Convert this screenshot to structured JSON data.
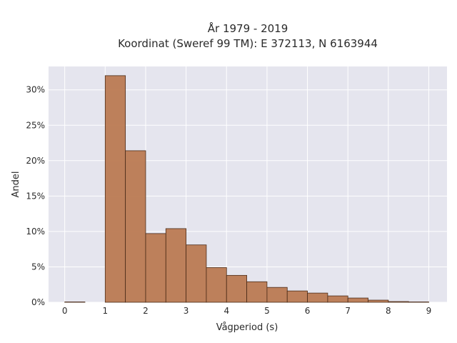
{
  "chart_data": {
    "type": "bar",
    "title": "År 1979 - 2019",
    "subtitle": "Koordinat (Sweref 99 TM): E 372113, N 6163944",
    "xlabel": "Vågperiod (s)",
    "ylabel": "Andel",
    "xlim": [
      -0.4,
      9.45
    ],
    "ylim": [
      0,
      0.333
    ],
    "x_ticks": [
      0,
      1,
      2,
      3,
      4,
      5,
      6,
      7,
      8,
      9
    ],
    "x_tick_labels": [
      "0",
      "1",
      "2",
      "3",
      "4",
      "5",
      "6",
      "7",
      "8",
      "9"
    ],
    "y_ticks": [
      0,
      0.05,
      0.1,
      0.15,
      0.2,
      0.25,
      0.3
    ],
    "y_tick_labels": [
      "0%",
      "5%",
      "10%",
      "15%",
      "20%",
      "25%",
      "30%"
    ],
    "bin_width": 0.5,
    "bins": [
      {
        "start": 0.0,
        "value": 0.0005
      },
      {
        "start": 0.5,
        "value": 0.0
      },
      {
        "start": 1.0,
        "value": 0.32
      },
      {
        "start": 1.5,
        "value": 0.214
      },
      {
        "start": 2.0,
        "value": 0.097
      },
      {
        "start": 2.5,
        "value": 0.104
      },
      {
        "start": 3.0,
        "value": 0.081
      },
      {
        "start": 3.5,
        "value": 0.049
      },
      {
        "start": 4.0,
        "value": 0.038
      },
      {
        "start": 4.5,
        "value": 0.029
      },
      {
        "start": 5.0,
        "value": 0.021
      },
      {
        "start": 5.5,
        "value": 0.016
      },
      {
        "start": 6.0,
        "value": 0.013
      },
      {
        "start": 6.5,
        "value": 0.009
      },
      {
        "start": 7.0,
        "value": 0.006
      },
      {
        "start": 7.5,
        "value": 0.003
      },
      {
        "start": 8.0,
        "value": 0.001
      },
      {
        "start": 8.5,
        "value": 0.0005
      }
    ],
    "grid": true,
    "colors": {
      "plot_background": "#e5e5ee",
      "grid": "#ffffff",
      "bar_fill": "#bb7a52",
      "bar_edge": "#4a2a17"
    }
  }
}
